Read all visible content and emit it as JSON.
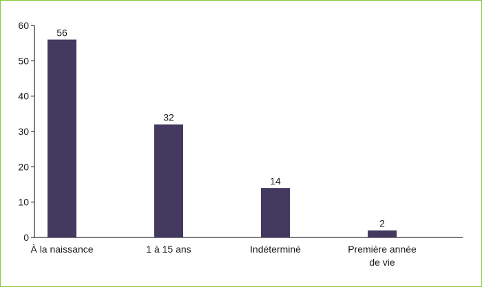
{
  "chart_data": {
    "type": "bar",
    "categories": [
      "À la naissance",
      "1 à 15 ans",
      "Indéterminé",
      "Première année de vie"
    ],
    "category_lines": [
      [
        "À la naissance"
      ],
      [
        "1 à 15 ans"
      ],
      [
        "Indéterminé"
      ],
      [
        "Première année",
        "de vie"
      ]
    ],
    "values": [
      56,
      32,
      14,
      2
    ],
    "title": "",
    "xlabel": "",
    "ylabel": "",
    "ylim": [
      0,
      60
    ],
    "yticks": [
      0,
      10,
      20,
      30,
      40,
      50,
      60
    ],
    "grid": false,
    "legend": "none",
    "bar_color": "#44395f",
    "frame_color": "#8cc63f"
  }
}
